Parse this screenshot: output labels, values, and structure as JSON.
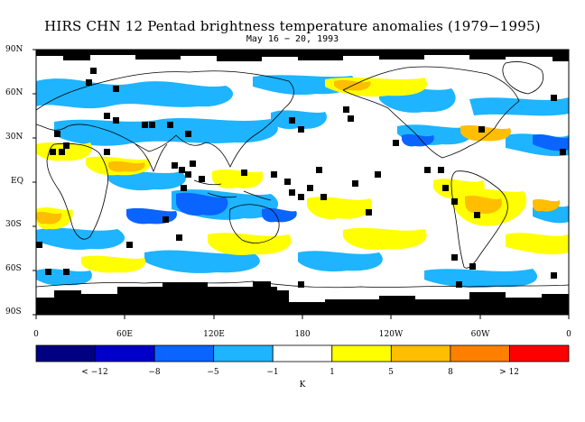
{
  "title": "HIRS CHN 12 Pentad brightness temperature anomalies (1979−1995)",
  "subtitle": "May 16 − 20, 1993",
  "y_ticks": [
    "90N",
    "60N",
    "30N",
    "EQ",
    "30S",
    "60S",
    "90S"
  ],
  "x_ticks": [
    "0",
    "60E",
    "120E",
    "180",
    "120W",
    "60W",
    "0"
  ],
  "colorbar": {
    "labels": [
      "< −12",
      "−8",
      "−5",
      "−1",
      "1",
      "5",
      "8",
      "> 12"
    ],
    "units": "K",
    "colors": [
      "#000080",
      "#0000c8",
      "#0a64ff",
      "#1eb4ff",
      "#ffffff",
      "#ffff00",
      "#ffbe00",
      "#ff8000",
      "#ff0000"
    ]
  },
  "map_colors": {
    "ocean_background": "#ffffff",
    "no_data": "#000000",
    "light_blue": "#1eb4ff",
    "blue": "#0a64ff",
    "yellow": "#ffff00",
    "orange": "#ffbe00",
    "coastline": "#000000"
  }
}
